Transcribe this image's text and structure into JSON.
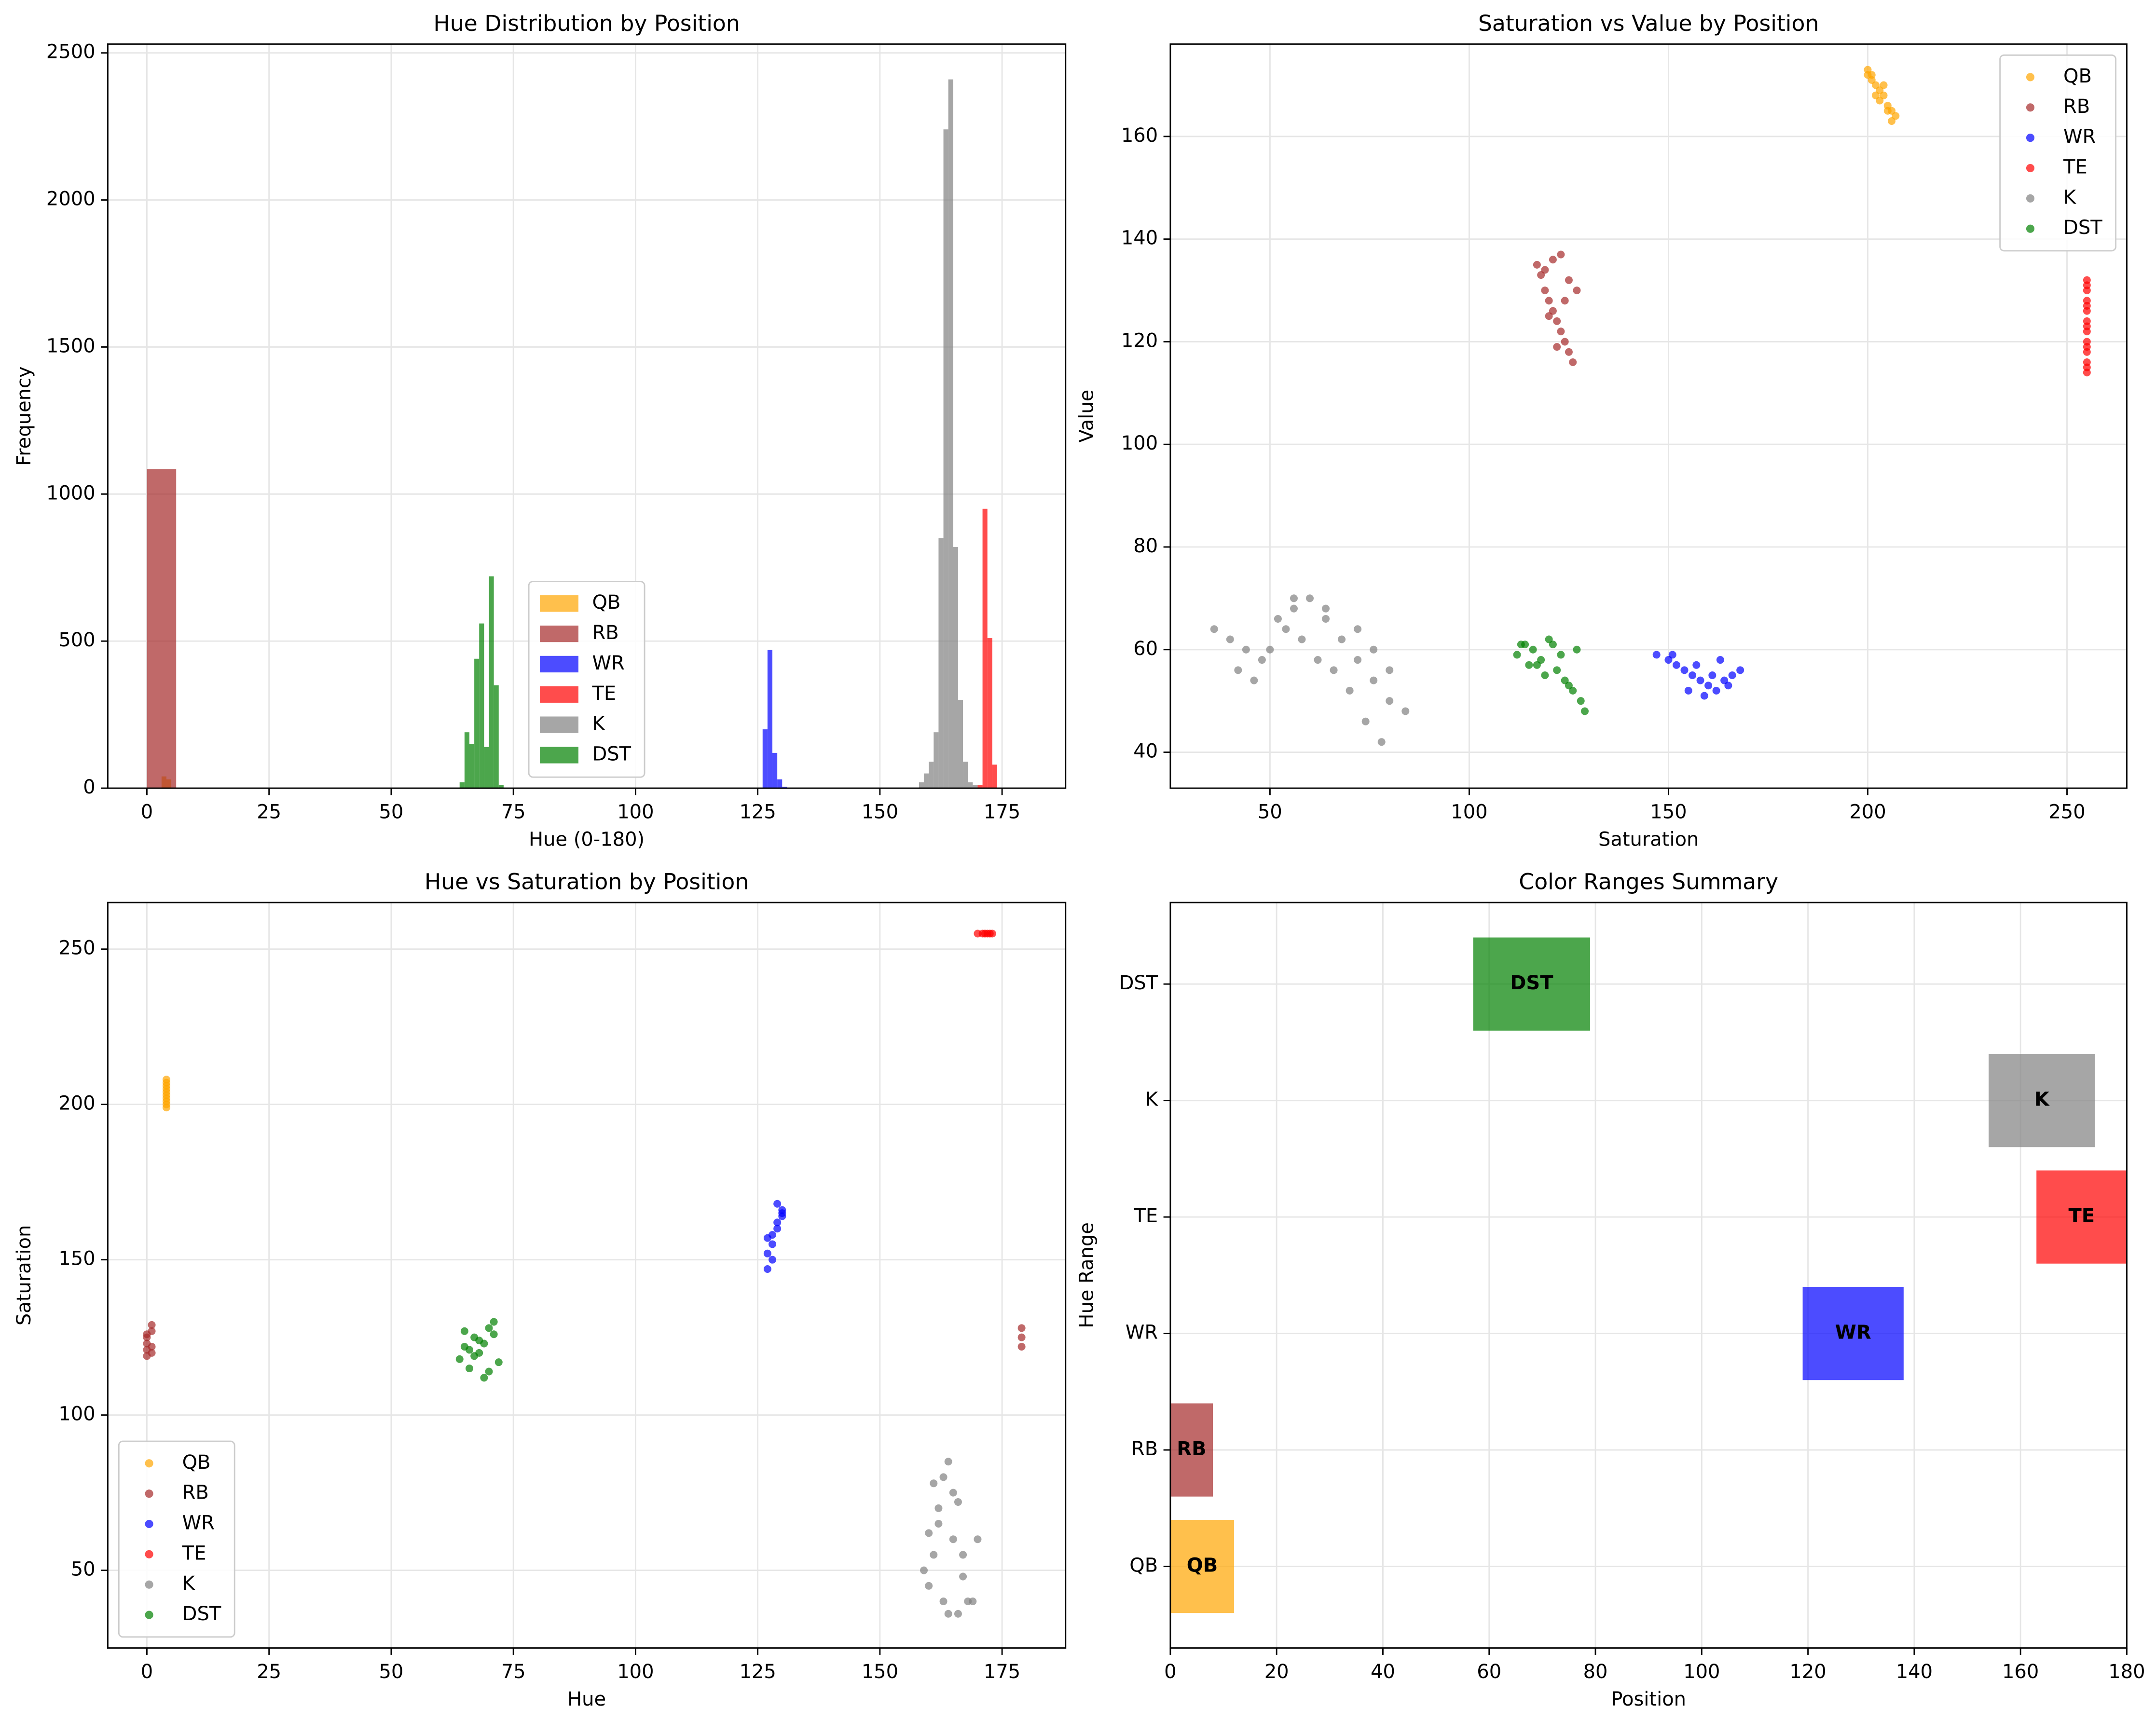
{
  "chart_data": [
    {
      "type": "histogram",
      "title": "Hue Distribution by Position",
      "xlabel": "Hue (0-180)",
      "ylabel": "Frequency",
      "xlim": [
        -8,
        188
      ],
      "xticks": [
        0,
        25,
        50,
        75,
        100,
        125,
        150,
        175
      ],
      "ylim": [
        0,
        2530
      ],
      "yticks": [
        0,
        500,
        1000,
        1500,
        2000,
        2500
      ],
      "grid": true,
      "legend": "lower center",
      "series": [
        {
          "name": "QB",
          "color": "#ffa500",
          "bins": [
            3,
            4,
            5
          ],
          "values": [
            40,
            30
          ]
        },
        {
          "name": "RB",
          "color": "#a52a2a",
          "bins": [
            0,
            6
          ],
          "values": [
            1085
          ]
        },
        {
          "name": "WR",
          "color": "#0000ff",
          "bins": [
            126,
            127,
            128,
            129,
            130,
            131
          ],
          "values": [
            200,
            470,
            120,
            30,
            5
          ]
        },
        {
          "name": "TE",
          "color": "#ff0000",
          "bins": [
            170,
            171,
            172,
            173,
            174
          ],
          "values": [
            10,
            950,
            510,
            80
          ]
        },
        {
          "name": "K",
          "color": "#808080",
          "bins": [
            158,
            159,
            160,
            161,
            162,
            163,
            164,
            165,
            166,
            167,
            168,
            169,
            170
          ],
          "values": [
            20,
            50,
            90,
            190,
            850,
            2240,
            2410,
            820,
            300,
            90,
            20,
            10
          ]
        },
        {
          "name": "DST",
          "color": "#008000",
          "bins": [
            64,
            65,
            66,
            67,
            68,
            69,
            70,
            71,
            72,
            73
          ],
          "values": [
            20,
            190,
            150,
            440,
            560,
            140,
            720,
            350,
            10
          ]
        }
      ]
    },
    {
      "type": "scatter",
      "title": "Saturation vs Value by Position",
      "xlabel": "Saturation",
      "ylabel": "Value",
      "xlim": [
        25,
        265
      ],
      "xticks": [
        50,
        100,
        150,
        200,
        250
      ],
      "ylim": [
        33,
        178
      ],
      "yticks": [
        40,
        60,
        80,
        100,
        120,
        140,
        160
      ],
      "grid": true,
      "legend": "upper right",
      "series": [
        {
          "name": "QB",
          "color": "#ffa500",
          "x": [
            200,
            201,
            202,
            203,
            204,
            205,
            206,
            207,
            201,
            203,
            204,
            205,
            202,
            206,
            200
          ],
          "y": [
            173,
            172,
            170,
            169,
            168,
            166,
            165,
            164,
            171,
            167,
            170,
            165,
            168,
            163,
            172
          ]
        },
        {
          "name": "RB",
          "color": "#a52a2a",
          "x": [
            117,
            118,
            119,
            120,
            121,
            122,
            123,
            124,
            125,
            126,
            127,
            119,
            121,
            123,
            125,
            120,
            124,
            122
          ],
          "y": [
            135,
            133,
            130,
            128,
            126,
            124,
            122,
            120,
            118,
            116,
            130,
            134,
            136,
            137,
            132,
            125,
            128,
            119
          ]
        },
        {
          "name": "WR",
          "color": "#0000ff",
          "x": [
            147,
            150,
            152,
            154,
            156,
            158,
            160,
            162,
            164,
            166,
            168,
            155,
            159,
            163,
            151,
            157,
            161,
            165
          ],
          "y": [
            59,
            58,
            57,
            56,
            55,
            54,
            53,
            52,
            54,
            55,
            56,
            52,
            51,
            58,
            59,
            57,
            55,
            53
          ]
        },
        {
          "name": "TE",
          "color": "#ff0000",
          "x": [
            255,
            255,
            255,
            255,
            255,
            255,
            255,
            255,
            255,
            255,
            255,
            255,
            255,
            255,
            255
          ],
          "y": [
            114,
            116,
            118,
            120,
            122,
            124,
            126,
            128,
            130,
            132,
            115,
            119,
            123,
            127,
            131
          ]
        },
        {
          "name": "K",
          "color": "#808080",
          "x": [
            36,
            40,
            44,
            48,
            52,
            56,
            60,
            64,
            68,
            72,
            76,
            80,
            84,
            50,
            54,
            58,
            62,
            66,
            70,
            74,
            78,
            42,
            46,
            56,
            64,
            72,
            76,
            80
          ],
          "y": [
            64,
            62,
            60,
            58,
            66,
            68,
            70,
            66,
            62,
            58,
            54,
            50,
            48,
            60,
            64,
            62,
            58,
            56,
            52,
            46,
            42,
            56,
            54,
            70,
            68,
            64,
            60,
            56
          ]
        },
        {
          "name": "DST",
          "color": "#008000",
          "x": [
            112,
            114,
            116,
            118,
            120,
            122,
            124,
            126,
            128,
            129,
            115,
            119,
            121,
            123,
            125,
            117,
            127,
            113
          ],
          "y": [
            59,
            61,
            60,
            58,
            62,
            56,
            54,
            52,
            50,
            48,
            57,
            55,
            61,
            59,
            53,
            57,
            60,
            61
          ]
        }
      ]
    },
    {
      "type": "scatter",
      "title": "Hue vs Saturation by Position",
      "xlabel": "Hue",
      "ylabel": "Saturation",
      "xlim": [
        -8,
        188
      ],
      "xticks": [
        0,
        25,
        50,
        75,
        100,
        125,
        150,
        175
      ],
      "ylim": [
        25,
        265
      ],
      "yticks": [
        50,
        100,
        150,
        200,
        250
      ],
      "grid": true,
      "legend": "lower left",
      "series": [
        {
          "name": "QB",
          "color": "#ffa500",
          "x": [
            4,
            4,
            4,
            4,
            4,
            4,
            4,
            4,
            4,
            4
          ],
          "y": [
            199,
            200,
            201,
            202,
            203,
            204,
            205,
            206,
            207,
            208
          ]
        },
        {
          "name": "RB",
          "color": "#a52a2a",
          "x": [
            0,
            0,
            0,
            0,
            1,
            1,
            1,
            0,
            1,
            179,
            179,
            179
          ],
          "y": [
            119,
            121,
            123,
            125,
            127,
            129,
            122,
            126,
            120,
            122,
            125,
            128
          ]
        },
        {
          "name": "WR",
          "color": "#0000ff",
          "x": [
            127,
            127,
            128,
            128,
            129,
            129,
            130,
            130,
            128,
            129,
            127,
            130
          ],
          "y": [
            147,
            152,
            155,
            158,
            160,
            162,
            164,
            166,
            150,
            168,
            157,
            165
          ]
        },
        {
          "name": "TE",
          "color": "#ff0000",
          "x": [
            170,
            171,
            171.5,
            172,
            172.5,
            173
          ],
          "y": [
            255,
            255,
            255,
            255,
            255,
            255
          ]
        },
        {
          "name": "K",
          "color": "#808080",
          "x": [
            159,
            160,
            161,
            162,
            163,
            164,
            165,
            166,
            167,
            168,
            169,
            170,
            162,
            164,
            166,
            161,
            163,
            165,
            167,
            160
          ],
          "y": [
            50,
            45,
            78,
            70,
            40,
            85,
            60,
            36,
            55,
            40,
            40,
            60,
            65,
            36,
            72,
            55,
            80,
            75,
            48,
            62
          ]
        },
        {
          "name": "DST",
          "color": "#008000",
          "x": [
            64,
            65,
            66,
            67,
            68,
            69,
            70,
            71,
            72,
            66,
            68,
            70,
            65,
            67,
            69,
            71
          ],
          "y": [
            118,
            122,
            115,
            125,
            120,
            112,
            128,
            130,
            117,
            121,
            124,
            114,
            127,
            119,
            123,
            126
          ]
        }
      ]
    },
    {
      "type": "range-bar",
      "title": "Color Ranges Summary",
      "xlabel": "Position",
      "ylabel": "Hue Range",
      "xlim": [
        0,
        180
      ],
      "xticks": [
        0,
        20,
        40,
        60,
        80,
        100,
        120,
        140,
        160,
        180
      ],
      "grid": true,
      "categories": [
        "QB",
        "RB",
        "WR",
        "TE",
        "K",
        "DST"
      ],
      "colors": [
        "#ffa500",
        "#a52a2a",
        "#0000ff",
        "#ff0000",
        "#808080",
        "#008000"
      ],
      "values": [
        [
          0,
          12
        ],
        [
          0,
          8
        ],
        [
          119,
          138
        ],
        [
          163,
          180
        ],
        [
          154,
          174
        ],
        [
          57,
          79
        ]
      ]
    }
  ]
}
